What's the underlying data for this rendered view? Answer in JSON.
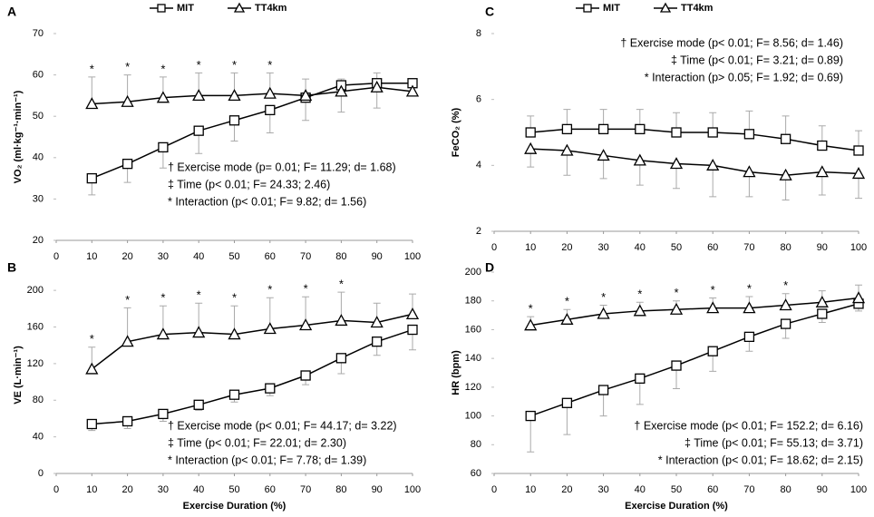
{
  "chart_data": [
    {
      "type": "line",
      "panel_label": "A",
      "ylabel": "VO₂ (ml·kg⁻¹·min⁻¹)",
      "legend": true,
      "x": [
        10,
        20,
        30,
        40,
        50,
        60,
        70,
        80,
        90,
        100
      ],
      "xlim": [
        0,
        100
      ],
      "xticks": [
        0,
        10,
        20,
        30,
        40,
        50,
        60,
        70,
        80,
        90,
        100
      ],
      "ylim": [
        20,
        70
      ],
      "yticks": [
        20,
        30,
        40,
        50,
        60,
        70
      ],
      "series": [
        {
          "name": "MIT",
          "color": "#000000",
          "marker": "square",
          "error_direction": "down",
          "values": [
            35,
            38.5,
            42.5,
            46.5,
            49,
            51.5,
            54.5,
            57.5,
            58,
            58
          ],
          "errors": [
            4,
            4.5,
            5,
            5.5,
            5,
            5.5,
            5.5,
            6.5,
            6,
            2
          ]
        },
        {
          "name": "TT4km",
          "color": "#000000",
          "marker": "triangle",
          "error_direction": "up",
          "values": [
            53,
            53.5,
            54.5,
            55,
            55,
            55.5,
            55,
            56,
            57,
            56
          ],
          "errors": [
            6.5,
            6.5,
            5,
            5.5,
            5.5,
            5,
            4,
            3,
            3.5,
            2
          ]
        }
      ],
      "sig_x": [
        10,
        20,
        30,
        40,
        50,
        60
      ],
      "sig_labels": [
        "*",
        "*",
        "*",
        "*",
        "*",
        "*"
      ],
      "stats": [
        "† Exercise mode (p= 0.01; F= 11.29; d= 1.68)",
        "‡ Time (p< 0.01; F= 24.33; 2.46)",
        "* Interaction (p< 0.01; F= 9.82; d= 1.56)"
      ]
    },
    {
      "type": "line",
      "panel_label": "B",
      "ylabel": "VE (L·min⁻¹)",
      "xlabel": "Exercise Duration (%)",
      "x": [
        10,
        20,
        30,
        40,
        50,
        60,
        70,
        80,
        90,
        100
      ],
      "xlim": [
        0,
        100
      ],
      "xticks": [
        0,
        10,
        20,
        30,
        40,
        50,
        60,
        70,
        80,
        90,
        100
      ],
      "ylim": [
        0,
        215
      ],
      "yticks": [
        0,
        40,
        80,
        120,
        160,
        200
      ],
      "series": [
        {
          "name": "MIT",
          "color": "#000000",
          "marker": "square",
          "error_direction": "down",
          "values": [
            54,
            57,
            65,
            75,
            86,
            93,
            107,
            126,
            144,
            157
          ],
          "errors": [
            7,
            8,
            8,
            6,
            8,
            8,
            10,
            17,
            15,
            22
          ]
        },
        {
          "name": "TT4km",
          "color": "#000000",
          "marker": "triangle",
          "error_direction": "up",
          "values": [
            114,
            144,
            152,
            154,
            152,
            158,
            162,
            167,
            165,
            174
          ],
          "errors": [
            24,
            37,
            31,
            32,
            31,
            34,
            31,
            31,
            21,
            22
          ]
        }
      ],
      "sig_x": [
        10,
        20,
        30,
        40,
        50,
        60,
        70,
        80
      ],
      "sig_labels": [
        "*",
        "*",
        "*",
        "*",
        "*",
        "*",
        "*",
        "*"
      ],
      "stats": [
        "† Exercise mode (p< 0.01; F= 44.17; d= 3.22)",
        "‡ Time (p< 0.01; F= 22.01; d= 2.30)",
        "* Interaction (p< 0.01; F= 7.78; d= 1.39)"
      ]
    },
    {
      "type": "line",
      "panel_label": "C",
      "ylabel": "FeCO₂ (%)",
      "legend": true,
      "x": [
        10,
        20,
        30,
        40,
        50,
        60,
        70,
        80,
        90,
        100
      ],
      "xlim": [
        0,
        100
      ],
      "xticks": [
        0,
        10,
        20,
        30,
        40,
        50,
        60,
        70,
        80,
        90,
        100
      ],
      "ylim": [
        2,
        8
      ],
      "yticks": [
        2,
        4,
        6,
        8
      ],
      "series": [
        {
          "name": "MIT",
          "color": "#000000",
          "marker": "square",
          "error_direction": "up",
          "values": [
            5.0,
            5.1,
            5.1,
            5.1,
            5.0,
            5.0,
            4.95,
            4.8,
            4.6,
            4.45
          ],
          "errors": [
            0.5,
            0.6,
            0.6,
            0.6,
            0.6,
            0.6,
            0.7,
            0.7,
            0.6,
            0.6
          ]
        },
        {
          "name": "TT4km",
          "color": "#000000",
          "marker": "triangle",
          "error_direction": "down",
          "values": [
            4.5,
            4.45,
            4.3,
            4.15,
            4.05,
            4.0,
            3.8,
            3.7,
            3.8,
            3.75
          ],
          "errors": [
            0.55,
            0.75,
            0.7,
            0.75,
            0.75,
            0.95,
            0.75,
            0.75,
            0.7,
            0.75
          ]
        }
      ],
      "stats": [
        "† Exercise mode (p< 0.01; F= 8.56; d= 1.46)",
        "‡ Time (p< 0.01; F= 3.21; d= 0.89)",
        "* Interaction (p> 0.05; F= 1.92; d= 0.69)"
      ]
    },
    {
      "type": "line",
      "panel_label": "D",
      "ylabel": "HR (bpm)",
      "xlabel": "Exercise Duration (%)",
      "x": [
        10,
        20,
        30,
        40,
        50,
        60,
        70,
        80,
        90,
        100
      ],
      "xlim": [
        0,
        100
      ],
      "xticks": [
        0,
        10,
        20,
        30,
        40,
        50,
        60,
        70,
        80,
        90,
        100
      ],
      "ylim": [
        60,
        200
      ],
      "yticks": [
        60,
        80,
        100,
        120,
        140,
        160,
        180,
        200
      ],
      "series": [
        {
          "name": "MIT",
          "color": "#000000",
          "marker": "square",
          "error_direction": "down",
          "values": [
            100,
            109,
            118,
            126,
            135,
            145,
            155,
            164,
            171,
            178
          ],
          "errors": [
            25,
            22,
            18,
            18,
            16,
            14,
            10,
            10,
            6,
            5
          ]
        },
        {
          "name": "TT4km",
          "color": "#000000",
          "marker": "triangle",
          "error_direction": "up",
          "values": [
            163,
            167,
            171,
            173,
            174,
            175,
            175,
            177,
            179,
            182
          ],
          "errors": [
            6,
            7,
            6,
            6,
            6,
            7,
            8,
            8,
            8,
            9
          ]
        }
      ],
      "sig_x": [
        10,
        20,
        30,
        40,
        50,
        60,
        70,
        80
      ],
      "sig_labels": [
        "*",
        "*",
        "*",
        "*",
        "*",
        "*",
        "*",
        "*"
      ],
      "stats": [
        "† Exercise mode (p< 0.01; F= 152.2; d= 6.16)",
        "‡ Time (p< 0.01; F= 55.13; d= 3.71)",
        "* Interaction (p< 0.01; F= 18.62; d= 2.15)"
      ]
    }
  ]
}
